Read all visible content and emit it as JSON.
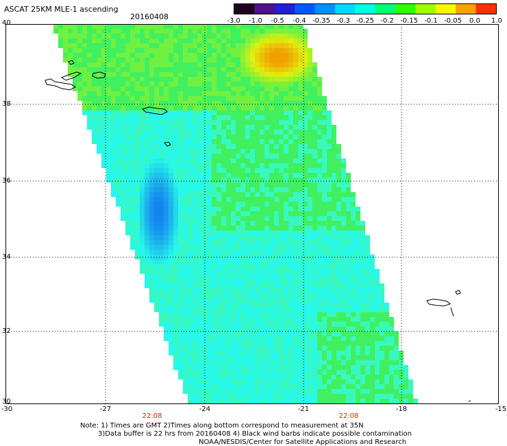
{
  "header": {
    "title": "ASCAT 25KM MLE-1 ascending",
    "date": "20160408"
  },
  "colorbar": {
    "labels": [
      "-3.0",
      "-1.0",
      "-0.5",
      "-0.4",
      "-0.35",
      "-0.3",
      "-0.25",
      "-0.2",
      "-0.15",
      "-0.1",
      "-0.05",
      "0.0",
      "1.0"
    ],
    "colors": [
      "#200020",
      "#50108a",
      "#2020d0",
      "#0058ff",
      "#0090ff",
      "#00d8ff",
      "#00ffe0",
      "#00ff70",
      "#30ff00",
      "#a0ff00",
      "#f8f800",
      "#ffa000",
      "#ff3000"
    ]
  },
  "map": {
    "lat_labels": [
      "40",
      "38",
      "36",
      "34",
      "32",
      "30"
    ],
    "lon_labels": [
      "-30",
      "-27",
      "-24",
      "-21",
      "-18",
      "-15"
    ],
    "time_labels": [
      "22:08",
      "22:08"
    ],
    "swath_colors": {
      "cyan": "#28f8e8",
      "aqua": "#38f8c0",
      "green": "#40f060",
      "lime": "#70f040",
      "yellow": "#e0f010",
      "orange": "#f0a000",
      "blue": "#1070f0"
    }
  },
  "notes": {
    "line1": "Note: 1) Times are GMT  2)Times along bottom correspond to measurement at 35N",
    "line2": "3)Data buffer is 22 hrs from 20160408  4) Black wind barbs indicate possible contamination",
    "line3": "NOAA/NESDIS/Center for Satellite Applications and Research"
  }
}
